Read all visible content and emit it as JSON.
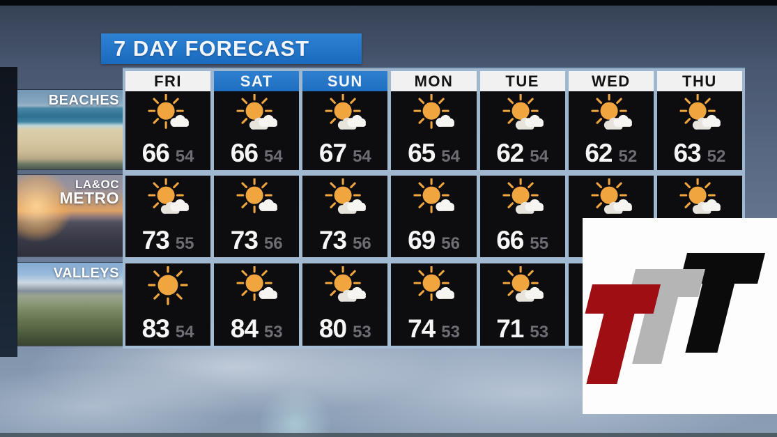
{
  "title": "7 DAY FORECAST",
  "day_styles": [
    "light",
    "blue",
    "blue",
    "light",
    "light",
    "light",
    "light"
  ],
  "regions": [
    {
      "label": "BEACHES",
      "photo": "beach-aerial-photo"
    },
    {
      "label": "LA&OC METRO",
      "label_line1": "LA&OC",
      "label_line2": "METRO",
      "photo": "freeway-sunset-photo"
    },
    {
      "label": "VALLEYS",
      "photo": "valley-aerial-photo"
    }
  ],
  "chart_data": {
    "type": "table",
    "title": "7 DAY FORECAST",
    "columns": [
      "FRI",
      "SAT",
      "SUN",
      "MON",
      "TUE",
      "WED",
      "THU"
    ],
    "rows": [
      {
        "region": "BEACHES",
        "high": [
          66,
          66,
          67,
          65,
          62,
          62,
          63
        ],
        "low": [
          54,
          54,
          54,
          54,
          54,
          52,
          52
        ],
        "icons": [
          "sun-cloud",
          "sun-clouds",
          "sun-clouds",
          "sun-cloud",
          "sun-clouds",
          "sun-clouds",
          "sun-clouds"
        ]
      },
      {
        "region": "LA&OC METRO",
        "high": [
          73,
          73,
          73,
          69,
          66,
          null,
          null
        ],
        "low": [
          55,
          56,
          56,
          56,
          55,
          null,
          null
        ],
        "icons": [
          "sun-clouds",
          "sun-cloud",
          "sun-clouds",
          "sun-cloud",
          "sun-clouds",
          "sun-clouds",
          "sun-clouds"
        ]
      },
      {
        "region": "VALLEYS",
        "high": [
          83,
          84,
          80,
          74,
          71,
          null,
          null
        ],
        "low": [
          54,
          53,
          53,
          53,
          53,
          null,
          null
        ],
        "icons": [
          "sun",
          "sun-cloud",
          "sun-clouds",
          "sun-cloud",
          "sun-clouds",
          null,
          null
        ]
      }
    ],
    "note": "WED/THU temperatures for rows 2 and 3 are hidden behind the station logo overlay"
  },
  "logo": {
    "letters": [
      {
        "name": "t-red-letter",
        "color": "#9e0e13"
      },
      {
        "name": "t-gray-letter",
        "color": "#b5b5b5"
      },
      {
        "name": "t-black-letter",
        "color": "#0b0b0b"
      }
    ]
  },
  "colors": {
    "title_bar_blue": "#1f74c9",
    "day_header_blue": "#2478c8",
    "day_header_light": "#f1f1f1",
    "cell_black": "#0d0d10",
    "panel_light_blue": "#a5bed6",
    "high_temp": "#f6f6f6",
    "low_temp": "#6d6d73",
    "sun_orange": "#f0a53e",
    "cloud_white": "#f6f5f2",
    "cloud_shadow": "#e7e4de"
  }
}
